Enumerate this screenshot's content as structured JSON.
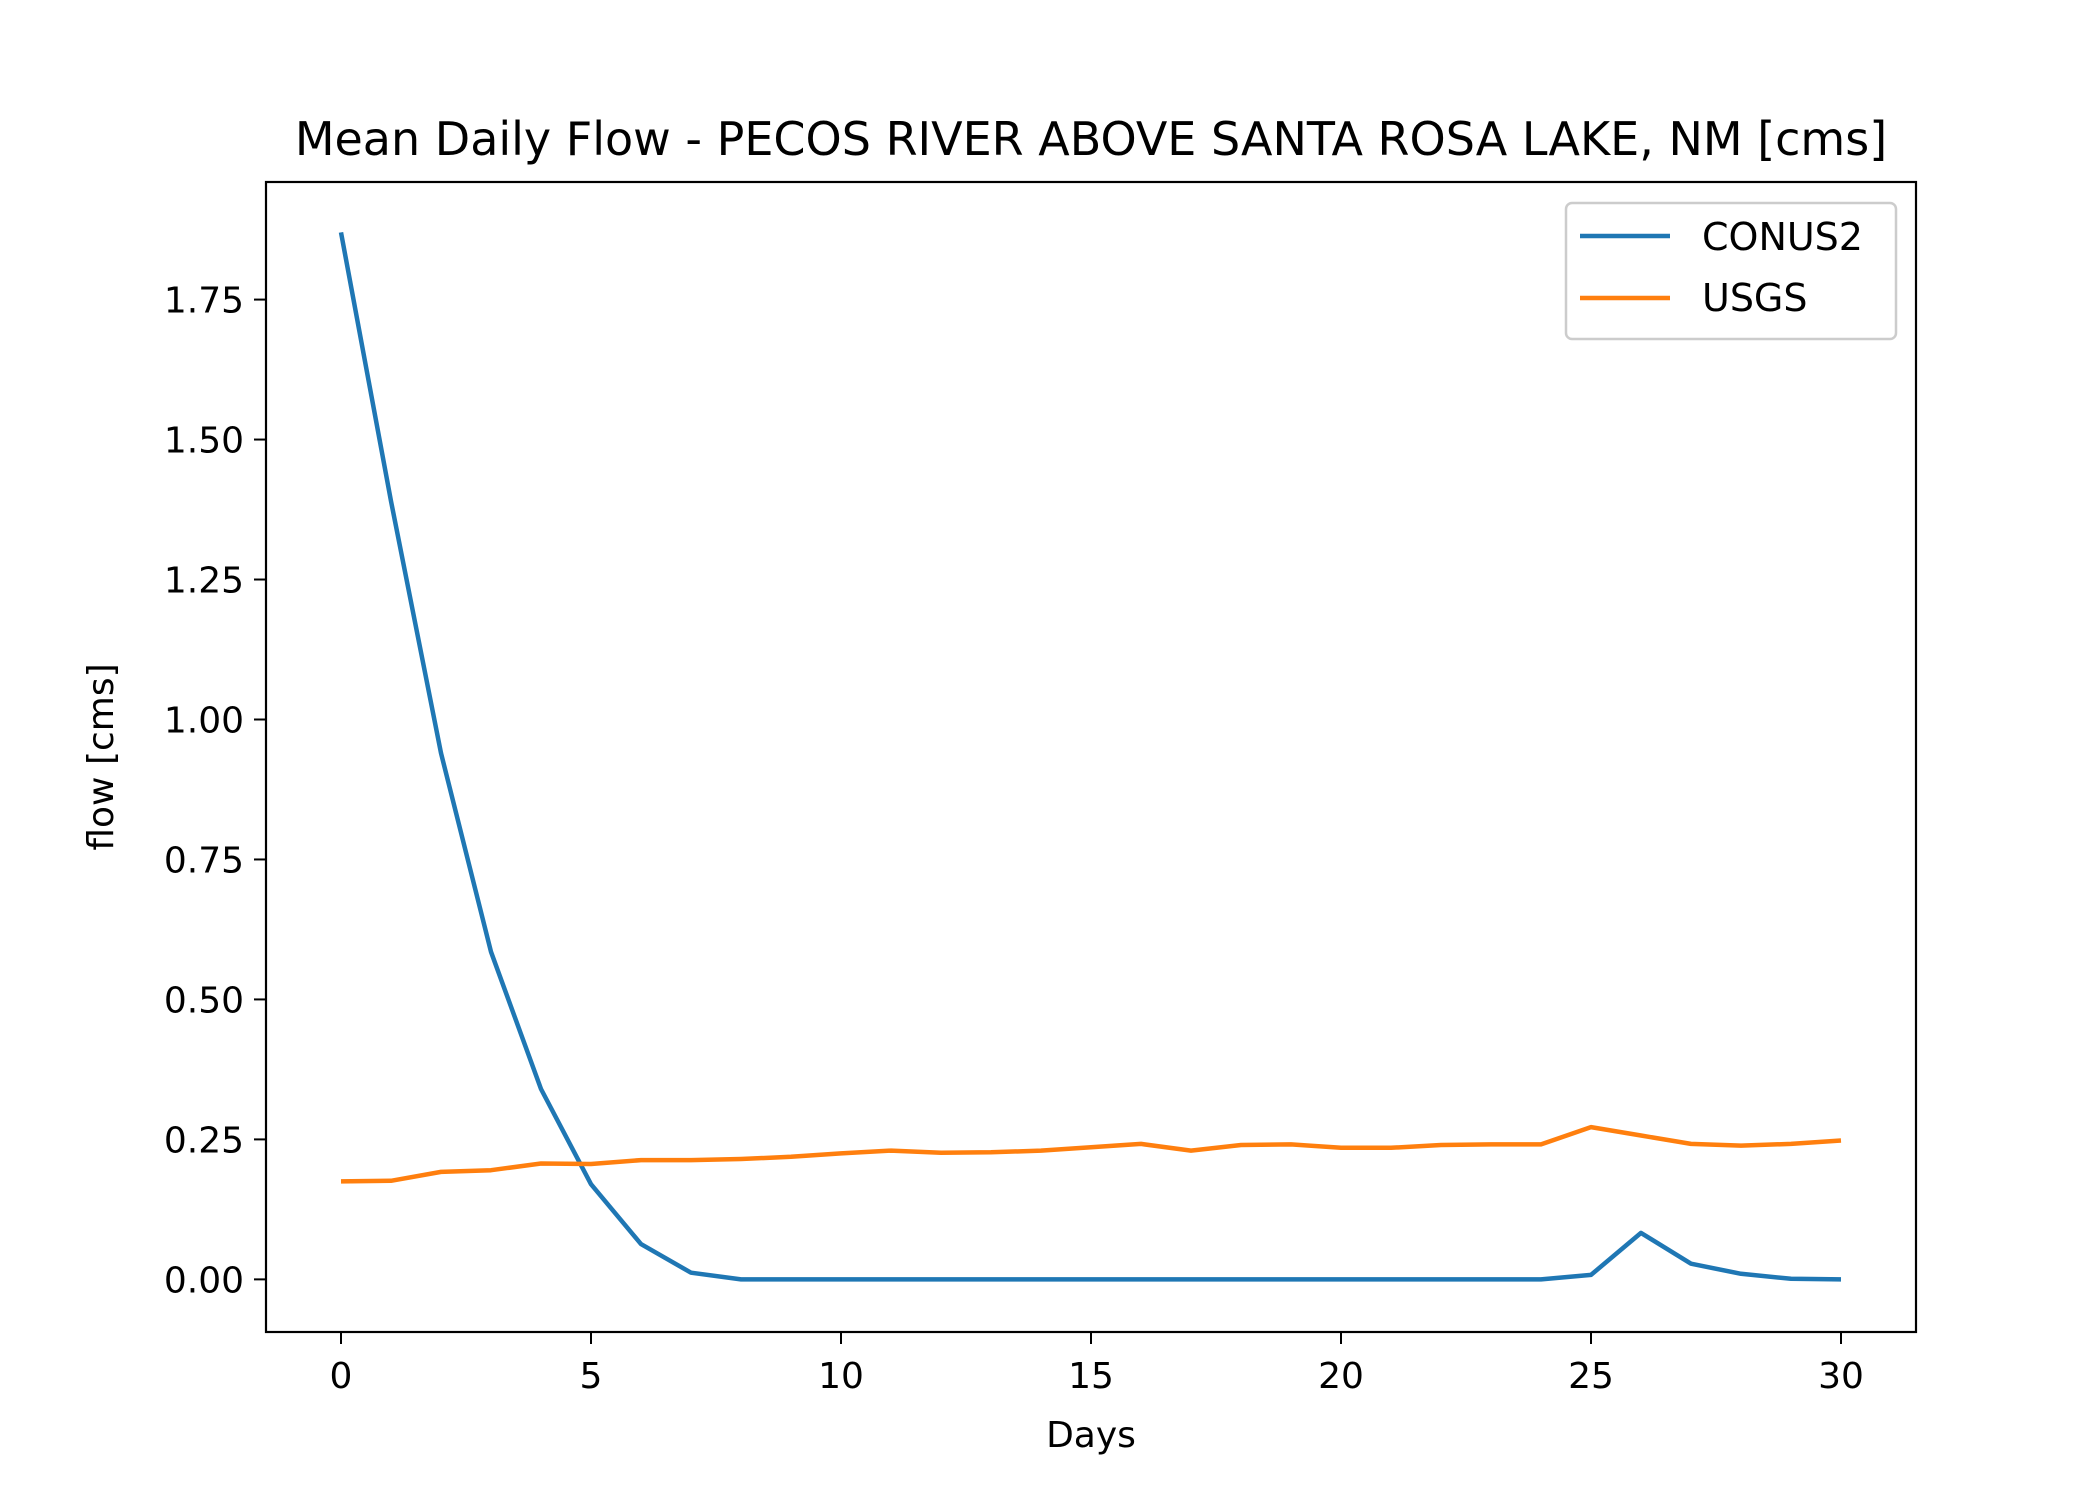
{
  "chart_data": {
    "type": "line",
    "title": "Mean Daily Flow - PECOS RIVER ABOVE SANTA ROSA LAKE, NM [cms]",
    "xlabel": "Days",
    "ylabel": "flow [cms]",
    "xlim": [
      -1.5,
      31.5
    ],
    "ylim": [
      -0.094,
      1.96
    ],
    "xticks": [
      0,
      5,
      10,
      15,
      20,
      25,
      30
    ],
    "xtick_labels": [
      "0",
      "5",
      "10",
      "15",
      "20",
      "25",
      "30"
    ],
    "yticks": [
      0.0,
      0.25,
      0.5,
      0.75,
      1.0,
      1.25,
      1.5,
      1.75
    ],
    "ytick_labels": [
      "0.00",
      "0.25",
      "0.50",
      "0.75",
      "1.00",
      "1.25",
      "1.50",
      "1.75"
    ],
    "grid": false,
    "legend": {
      "placement": "top-right"
    },
    "x": [
      0,
      1,
      2,
      3,
      4,
      5,
      6,
      7,
      8,
      9,
      10,
      11,
      12,
      13,
      14,
      15,
      16,
      17,
      18,
      19,
      20,
      21,
      22,
      23,
      24,
      25,
      26,
      27,
      28,
      29,
      30
    ],
    "series": [
      {
        "name": "CONUS2",
        "color": "#1f77b4",
        "values": [
          1.87,
          1.39,
          0.94,
          0.585,
          0.34,
          0.17,
          0.063,
          0.012,
          0.0,
          0.0,
          0.0,
          0.0,
          0.0,
          0.0,
          0.0,
          0.0,
          0.0,
          0.0,
          0.0,
          0.0,
          0.0,
          0.0,
          0.0,
          0.0,
          0.0,
          0.008,
          0.083,
          0.028,
          0.01,
          0.001,
          0.0
        ]
      },
      {
        "name": "USGS",
        "color": "#ff7f0e",
        "values": [
          0.175,
          0.176,
          0.192,
          0.195,
          0.207,
          0.206,
          0.213,
          0.213,
          0.215,
          0.219,
          0.225,
          0.23,
          0.226,
          0.227,
          0.23,
          0.236,
          0.242,
          0.23,
          0.24,
          0.241,
          0.235,
          0.235,
          0.24,
          0.241,
          0.241,
          0.272,
          0.257,
          0.242,
          0.239,
          0.242,
          0.248
        ]
      }
    ]
  }
}
